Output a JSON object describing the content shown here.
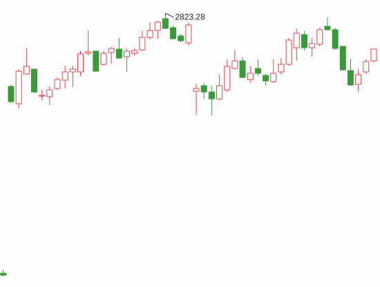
{
  "chart_data": {
    "type": "candlestick",
    "ylim": [
      2040,
      2870
    ],
    "up_color": "#e0474c",
    "down_color": "#3a9a3a",
    "annotate_index": 21,
    "open": [
      2080,
      2620,
      2570,
      2656,
      2670,
      2592,
      2590,
      2614,
      2638,
      2662,
      2662,
      2716,
      2722,
      2684,
      2718,
      2728,
      2706,
      2716,
      2726,
      2762,
      2782,
      2816,
      2790,
      2766,
      2746,
      2606,
      2622,
      2604,
      2584,
      2610,
      2672,
      2694,
      2640,
      2672,
      2652,
      2634,
      2662,
      2684,
      2732,
      2770,
      2732,
      2742,
      2794,
      2784,
      2736,
      2666,
      2626,
      2662,
      2694
    ],
    "high": [
      2090,
      2626,
      2670,
      2730,
      2670,
      2610,
      2620,
      2646,
      2680,
      2680,
      2722,
      2782,
      2722,
      2722,
      2734,
      2760,
      2730,
      2730,
      2782,
      2806,
      2810,
      2823.28,
      2796,
      2772,
      2804,
      2628,
      2630,
      2622,
      2654,
      2698,
      2726,
      2704,
      2680,
      2698,
      2656,
      2698,
      2702,
      2760,
      2786,
      2780,
      2760,
      2790,
      2820,
      2790,
      2736,
      2700,
      2670,
      2698,
      2728
    ],
    "low": [
      2072,
      2572,
      2556,
      2654,
      2602,
      2580,
      2566,
      2610,
      2614,
      2618,
      2650,
      2710,
      2662,
      2680,
      2686,
      2700,
      2662,
      2710,
      2722,
      2756,
      2758,
      2786,
      2756,
      2748,
      2738,
      2538,
      2584,
      2536,
      2580,
      2604,
      2670,
      2644,
      2630,
      2650,
      2622,
      2630,
      2654,
      2680,
      2694,
      2724,
      2706,
      2736,
      2782,
      2726,
      2666,
      2622,
      2606,
      2656,
      2690
    ],
    "close": [
      2074,
      2576,
      2664,
      2678,
      2604,
      2594,
      2610,
      2640,
      2662,
      2670,
      2714,
      2720,
      2664,
      2716,
      2730,
      2702,
      2722,
      2724,
      2762,
      2782,
      2806,
      2788,
      2758,
      2752,
      2798,
      2614,
      2604,
      2584,
      2622,
      2678,
      2694,
      2646,
      2658,
      2658,
      2636,
      2658,
      2684,
      2754,
      2774,
      2732,
      2744,
      2784,
      2784,
      2730,
      2668,
      2624,
      2654,
      2692,
      2728
    ]
  }
}
